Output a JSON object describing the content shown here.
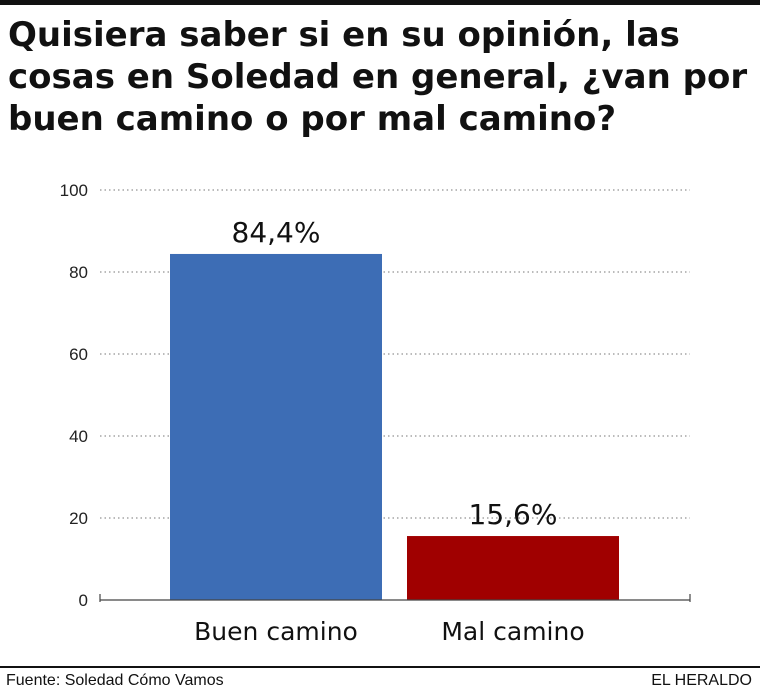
{
  "header": {
    "title": "Quisiera saber si en su opinión, las cosas en Soledad en general, ¿van por buen camino o por mal camino?"
  },
  "footer": {
    "source": "Fuente: Soledad Cómo Vamos",
    "brand": "EL HERALDO"
  },
  "chart_data": {
    "type": "bar",
    "title": "Quisiera saber si en su opinión, las cosas en Soledad en general, ¿van por buen camino o por mal camino?",
    "categories": [
      "Buen camino",
      "Mal camino"
    ],
    "values": [
      84.4,
      15.6
    ],
    "value_labels": [
      "84,4%",
      "15,6%"
    ],
    "colors": [
      "#3d6db5",
      "#a00000"
    ],
    "ylim": [
      0,
      100
    ],
    "yticks": [
      0,
      20,
      40,
      60,
      80,
      100
    ],
    "ytick_labels": [
      "0",
      "20",
      "40",
      "60",
      "80",
      "100"
    ],
    "grid": true,
    "legend": "none"
  }
}
